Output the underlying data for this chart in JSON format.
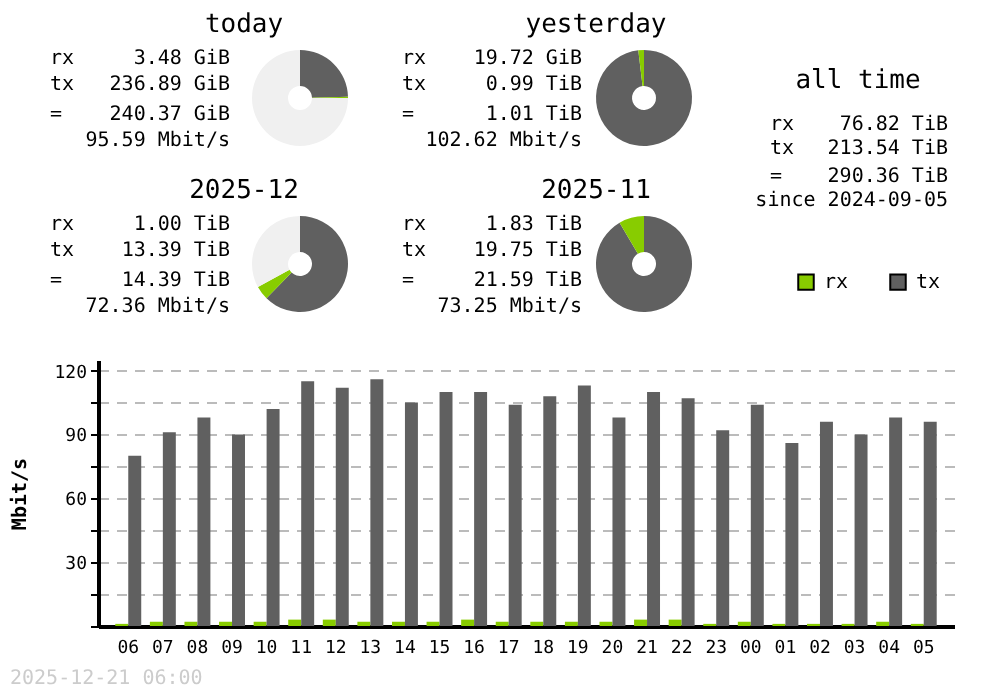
{
  "chart_data": [
    {
      "type": "donut",
      "title": "today",
      "categories": [
        null,
        null,
        null
      ],
      "values": [
        24.6,
        0.4,
        75
      ],
      "colors": [
        "#606060",
        "#88cc00",
        "#f0f0f0"
      ],
      "annotations": [
        "rx 3.48 GiB",
        "tx 236.89 GiB",
        "= 240.37 GiB",
        "95.59 Mbit/s"
      ]
    },
    {
      "type": "donut",
      "title": "yesterday",
      "categories": [
        null,
        null
      ],
      "values": [
        98.1,
        1.9
      ],
      "colors": [
        "#606060",
        "#88cc00"
      ],
      "annotations": [
        "rx 19.72 GiB",
        "tx 0.99 TiB",
        "= 1.01 TiB",
        "102.62 Mbit/s"
      ]
    },
    {
      "type": "other",
      "title": "all time",
      "annotations": [
        "rx 76.82 TiB",
        "tx 213.54 TiB",
        "= 290.36 TiB",
        "since 2024-09-05"
      ]
    },
    {
      "type": "donut",
      "title": "2025-12",
      "categories": [
        null,
        null,
        null
      ],
      "values": [
        62.3,
        4.7,
        33
      ],
      "colors": [
        "#606060",
        "#88cc00",
        "#f0f0f0"
      ],
      "annotations": [
        "rx 1.00 TiB",
        "tx 13.39 TiB",
        "= 14.39 TiB",
        "72.36 Mbit/s"
      ]
    },
    {
      "type": "donut",
      "title": "2025-11",
      "categories": [
        null,
        null
      ],
      "values": [
        91.5,
        8.5
      ],
      "colors": [
        "#606060",
        "#88cc00"
      ],
      "annotations": [
        "rx 1.83 TiB",
        "tx 19.75 TiB",
        "= 21.59 TiB",
        "73.25 Mbit/s"
      ]
    },
    {
      "type": "bar",
      "categories": [
        "06",
        "07",
        "08",
        "09",
        "10",
        "11",
        "12",
        "13",
        "14",
        "15",
        "16",
        "17",
        "18",
        "19",
        "20",
        "21",
        "22",
        "23",
        "00",
        "01",
        "02",
        "03",
        "04",
        "05"
      ],
      "series": [
        {
          "name": "rx",
          "color": "#88cc00",
          "values": [
            1,
            2,
            2,
            2,
            2,
            3,
            3,
            2,
            2,
            2,
            3,
            2,
            2,
            2,
            2,
            3,
            3,
            1,
            2,
            1,
            1,
            1,
            2,
            1
          ]
        },
        {
          "name": "tx",
          "color": "#606060",
          "values": [
            80,
            91,
            98,
            90,
            102,
            115,
            112,
            116,
            105,
            110,
            110,
            104,
            108,
            113,
            98,
            110,
            107,
            92,
            104,
            86,
            96,
            90,
            98,
            96
          ]
        }
      ],
      "ylabel": "Mbit/s",
      "ylim": [
        0,
        125
      ],
      "yticks": [
        {
          "value": 0,
          "label": null
        },
        {
          "value": 15,
          "label": null
        },
        30,
        {
          "value": 45,
          "label": null
        },
        60,
        {
          "value": 75,
          "label": null
        },
        90,
        {
          "value": 105,
          "label": null
        },
        120
      ],
      "grid": "y",
      "legend": "top right",
      "annotations": [
        "2025-12-21 06:00"
      ]
    }
  ]
}
